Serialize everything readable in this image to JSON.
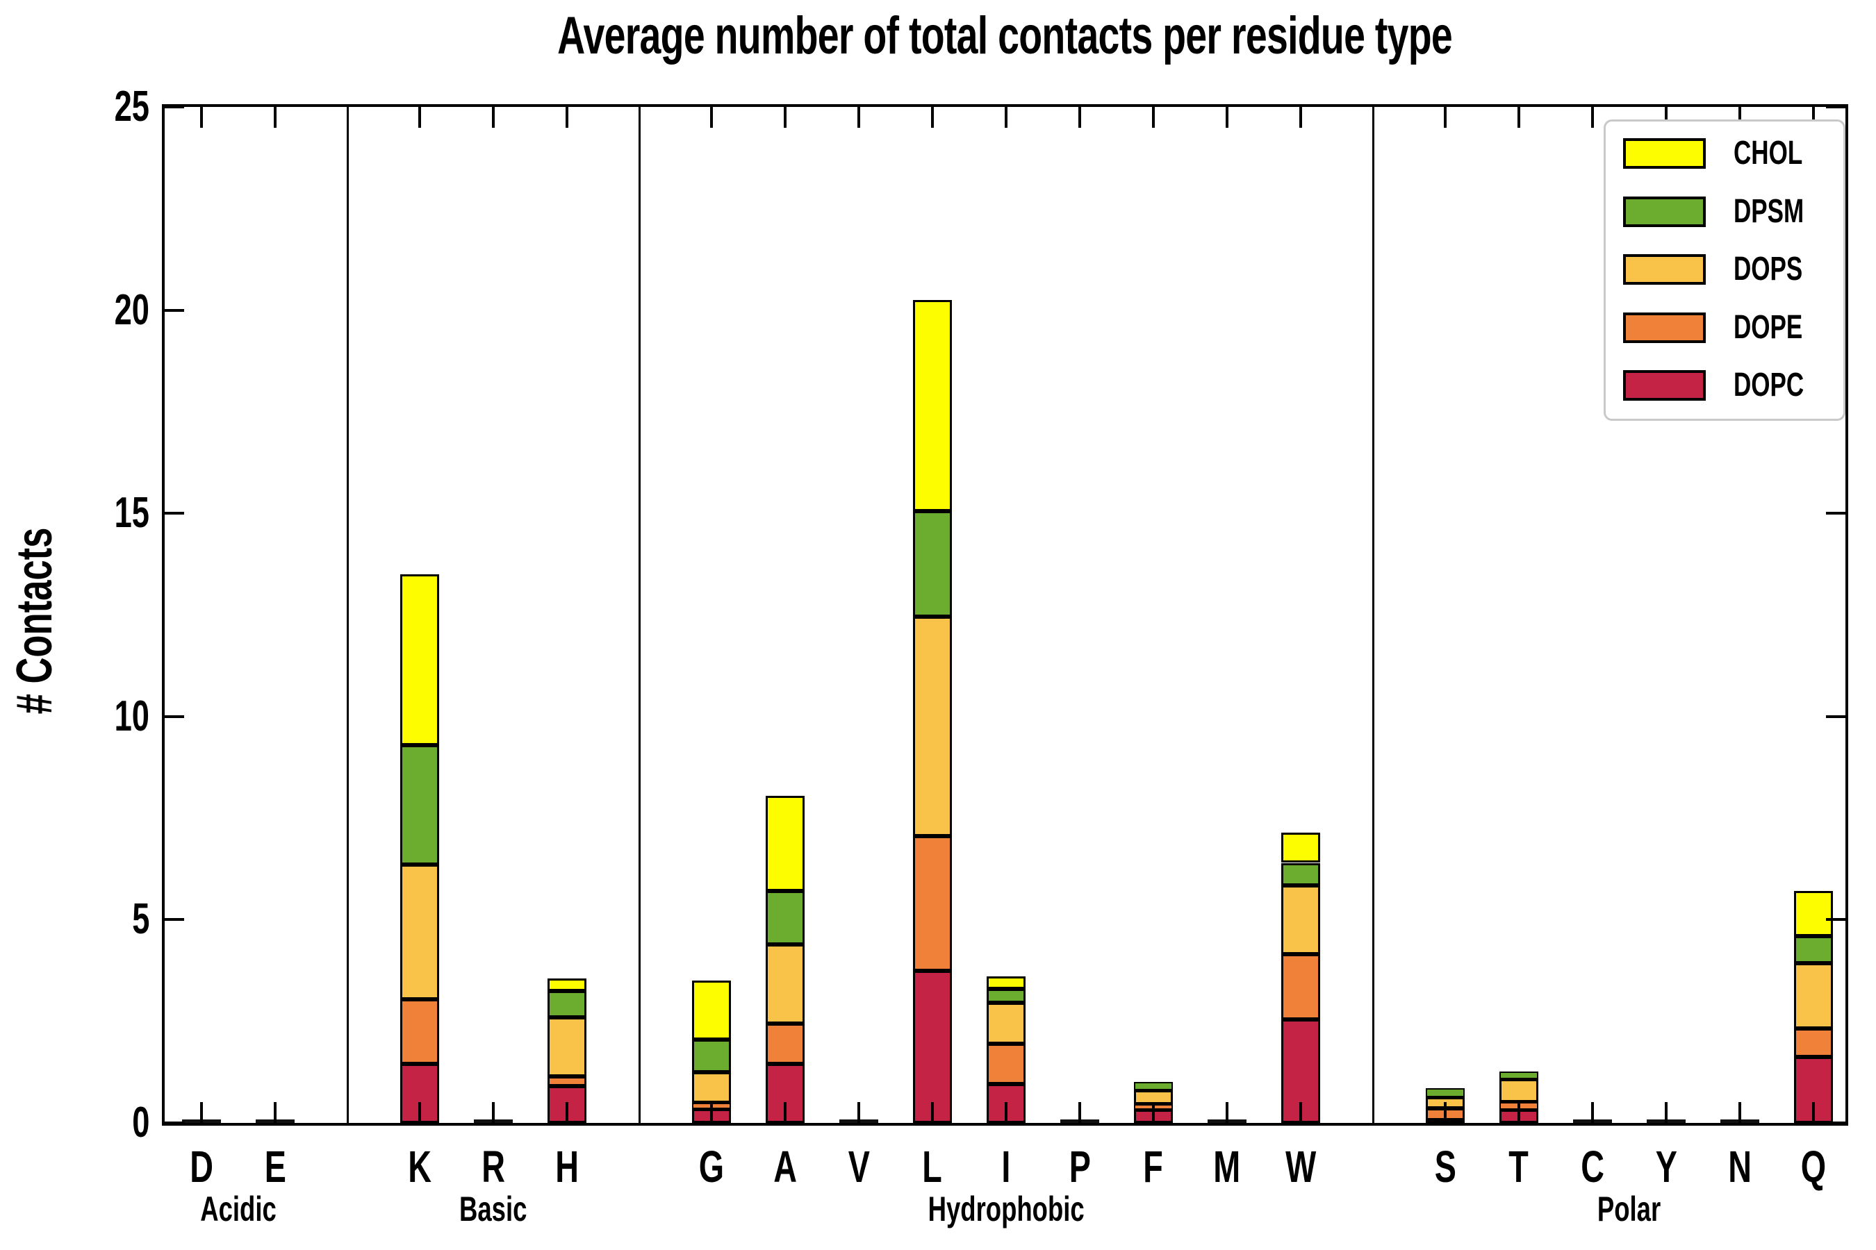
{
  "title": "Average number of total contacts per residue type",
  "axes": {
    "ylabel": "# Contacts",
    "yticks": [
      0,
      5,
      10,
      15,
      20,
      25
    ],
    "ylim": [
      0,
      25
    ]
  },
  "groups": [
    {
      "label": "Acidic",
      "residues": [
        "D",
        "E"
      ]
    },
    {
      "label": "Basic",
      "residues": [
        "K",
        "R",
        "H"
      ]
    },
    {
      "label": "Hydrophobic",
      "residues": [
        "G",
        "A",
        "V",
        "L",
        "I",
        "P",
        "F",
        "M",
        "W"
      ]
    },
    {
      "label": "Polar",
      "residues": [
        "S",
        "T",
        "C",
        "Y",
        "N",
        "Q"
      ]
    }
  ],
  "legend": {
    "entries": [
      {
        "label": "CHOL",
        "color": "#FDFD00"
      },
      {
        "label": "DPSM",
        "color": "#6CAC2E"
      },
      {
        "label": "DOPS",
        "color": "#F9C349"
      },
      {
        "label": "DOPE",
        "color": "#EF8138"
      },
      {
        "label": "DOPC",
        "color": "#C52346"
      }
    ]
  },
  "chart_data": {
    "type": "bar",
    "stacked": true,
    "title": "Average number of total contacts per residue type",
    "xlabel": "",
    "ylabel": "# Contacts",
    "ylim": [
      0,
      25
    ],
    "grid": false,
    "legend_position": "upper right",
    "categories": [
      "D",
      "E",
      "K",
      "R",
      "H",
      "G",
      "A",
      "V",
      "L",
      "I",
      "P",
      "F",
      "M",
      "W",
      "S",
      "T",
      "C",
      "Y",
      "N",
      "Q"
    ],
    "category_groups": [
      "Acidic",
      "Acidic",
      "Basic",
      "Basic",
      "Basic",
      "Hydrophobic",
      "Hydrophobic",
      "Hydrophobic",
      "Hydrophobic",
      "Hydrophobic",
      "Hydrophobic",
      "Hydrophobic",
      "Hydrophobic",
      "Hydrophobic",
      "Polar",
      "Polar",
      "Polar",
      "Polar",
      "Polar",
      "Polar"
    ],
    "series": [
      {
        "name": "DOPC",
        "color": "#C52346",
        "values": [
          0.03,
          0.03,
          1.45,
          0.03,
          0.9,
          0.35,
          1.45,
          0.03,
          3.75,
          0.95,
          0.03,
          0.33,
          0.03,
          2.55,
          0.07,
          0.32,
          0.03,
          0.03,
          0.03,
          1.63
        ]
      },
      {
        "name": "DOPE",
        "color": "#EF8138",
        "values": [
          0,
          0,
          1.6,
          0,
          0.25,
          0.15,
          1.0,
          0,
          3.3,
          1.0,
          0,
          0.13,
          0,
          1.6,
          0.29,
          0.19,
          0,
          0,
          0,
          0.7
        ]
      },
      {
        "name": "DOPS",
        "color": "#F9C349",
        "values": [
          0,
          0,
          3.3,
          0,
          1.45,
          0.75,
          1.95,
          0,
          5.4,
          1.0,
          0,
          0.34,
          0,
          1.7,
          0.28,
          0.57,
          0,
          0,
          0,
          1.6
        ]
      },
      {
        "name": "DPSM",
        "color": "#6CAC2E",
        "values": [
          0,
          0,
          2.95,
          0,
          0.65,
          0.8,
          1.3,
          0,
          2.6,
          0.35,
          0,
          0.2,
          0,
          0.55,
          0.21,
          0.18,
          0,
          0,
          0,
          0.67
        ]
      },
      {
        "name": "CHOL",
        "color": "#FDFD00",
        "values": [
          0,
          0,
          4.2,
          0,
          0.3,
          1.45,
          2.35,
          0,
          5.2,
          0.3,
          0,
          0,
          0,
          0.75,
          0,
          0,
          0,
          0,
          0,
          1.1
        ]
      }
    ],
    "totals_note": "stack order bottom to top: DOPC, DOPE, DOPS, DPSM, CHOL"
  }
}
